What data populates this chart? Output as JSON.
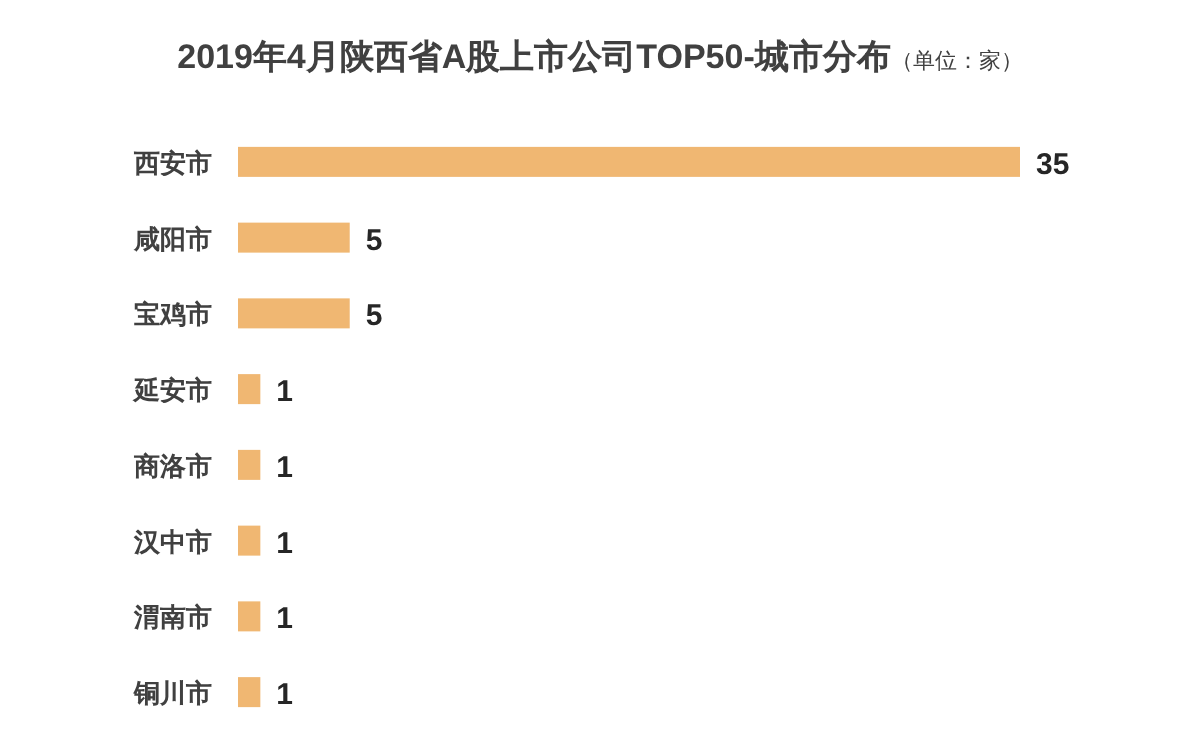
{
  "chart_data": {
    "type": "bar",
    "orientation": "horizontal",
    "title": "2019年4月陕西省A股上市公司TOP50-城市分布",
    "subtitle": "（单位：家）",
    "categories": [
      "西安市",
      "咸阳市",
      "宝鸡市",
      "延安市",
      "商洛市",
      "汉中市",
      "渭南市",
      "铜川市"
    ],
    "values": [
      35,
      5,
      5,
      1,
      1,
      1,
      1,
      1
    ],
    "color": "#f0b772",
    "data_labels": true
  }
}
